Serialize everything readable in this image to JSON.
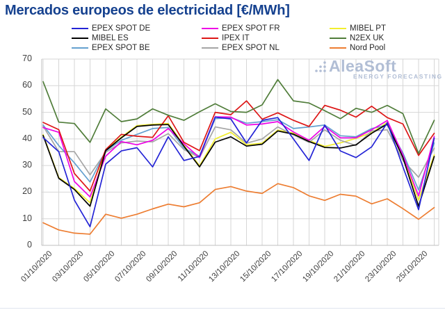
{
  "title": "Mercados europeos de electricidad [€/MWh]",
  "watermark": {
    "brand": "AleaSoft",
    "tagline": "ENERGY FORECASTING"
  },
  "chart_data": {
    "type": "line",
    "title": "Mercados europeos de electricidad [€/MWh]",
    "xlabel": "",
    "ylabel": "",
    "ylim": [
      0,
      70
    ],
    "y_ticks": [
      0,
      10,
      20,
      30,
      40,
      50,
      60,
      70
    ],
    "grid": true,
    "legend_position": "top",
    "x": [
      "01/10/2020",
      "02/10/2020",
      "03/10/2020",
      "04/10/2020",
      "05/10/2020",
      "06/10/2020",
      "07/10/2020",
      "08/10/2020",
      "09/10/2020",
      "10/10/2020",
      "11/10/2020",
      "12/10/2020",
      "13/10/2020",
      "14/10/2020",
      "15/10/2020",
      "16/10/2020",
      "17/10/2020",
      "18/10/2020",
      "19/10/2020",
      "20/10/2020",
      "21/10/2020",
      "22/10/2020",
      "23/10/2020",
      "24/10/2020",
      "25/10/2020",
      "26/10/2020"
    ],
    "x_tick_indices": [
      0,
      2,
      4,
      6,
      8,
      10,
      12,
      14,
      16,
      18,
      20,
      22,
      24
    ],
    "series": [
      {
        "name": "EPEX SPOT DE",
        "color": "#2424d6",
        "z": 7,
        "values": [
          40.5,
          35.2,
          17.0,
          7.0,
          30.5,
          35.5,
          36.7,
          29.5,
          40.8,
          31.9,
          33.4,
          48.2,
          47.5,
          38.5,
          47.0,
          48.0,
          40.0,
          31.9,
          45.2,
          35.5,
          33.0,
          37.0,
          46.1,
          29.5,
          13.4,
          40.3
        ]
      },
      {
        "name": "EPEX SPOT FR",
        "color": "#ee00e6",
        "z": 4,
        "values": [
          44.3,
          42.5,
          24.0,
          18.2,
          33.5,
          39.0,
          37.8,
          39.5,
          43.9,
          38.2,
          33.0,
          48.3,
          48.2,
          45.2,
          45.6,
          46.5,
          42.6,
          39.5,
          44.7,
          40.4,
          40.4,
          43.4,
          46.9,
          33.9,
          18.6,
          40.9
        ]
      },
      {
        "name": "MIBEL PT",
        "color": "#f2ee2e",
        "z": 1,
        "values": [
          41.6,
          25.5,
          21.4,
          16.0,
          35.9,
          40.7,
          45.0,
          45.5,
          45.8,
          37.7,
          29.9,
          40.0,
          42.5,
          37.8,
          38.4,
          43.3,
          42.2,
          39.4,
          37.2,
          38.5,
          40.2,
          42.4,
          46.2,
          33.4,
          17.0,
          34.0
        ]
      },
      {
        "name": "MIBEL ES",
        "color": "#000000",
        "z": 6,
        "values": [
          41.3,
          25.2,
          21.0,
          14.7,
          35.6,
          40.4,
          44.7,
          45.2,
          45.4,
          37.3,
          29.5,
          38.8,
          40.8,
          37.3,
          38.0,
          43.0,
          41.8,
          39.0,
          36.8,
          36.6,
          37.8,
          42.1,
          45.6,
          33.0,
          14.7,
          33.4
        ]
      },
      {
        "name": "IPEX IT",
        "color": "#dd1515",
        "z": 5,
        "values": [
          46.2,
          43.5,
          27.0,
          20.4,
          36.0,
          41.7,
          41.0,
          40.6,
          48.7,
          38.7,
          35.6,
          50.0,
          49.1,
          54.3,
          47.4,
          49.8,
          47.0,
          44.7,
          52.6,
          50.8,
          48.2,
          52.3,
          48.0,
          45.6,
          33.8,
          42.1
        ]
      },
      {
        "name": "N2EX UK",
        "color": "#507d3a",
        "z": 8,
        "values": [
          61.5,
          46.3,
          45.8,
          38.7,
          51.3,
          46.5,
          47.5,
          51.3,
          48.9,
          47.0,
          50.2,
          53.2,
          50.3,
          50.0,
          52.8,
          62.3,
          54.3,
          53.5,
          50.6,
          47.6,
          51.5,
          50.0,
          52.6,
          49.5,
          34.5,
          47.0
        ]
      },
      {
        "name": "EPEX SPOT BE",
        "color": "#64a0cf",
        "z": 3,
        "values": [
          45.2,
          37.5,
          31.0,
          23.8,
          35.5,
          39.5,
          41.7,
          43.9,
          44.3,
          36.5,
          33.5,
          47.6,
          48.0,
          45.9,
          46.5,
          47.2,
          43.9,
          44.5,
          45.2,
          41.2,
          40.8,
          43.9,
          45.2,
          34.7,
          20.8,
          38.5
        ]
      },
      {
        "name": "EPEX SPOT NL",
        "color": "#a5a5a5",
        "z": 2,
        "values": [
          44.8,
          35.2,
          35.2,
          26.5,
          35.0,
          38.5,
          39.2,
          38.9,
          42.0,
          36.0,
          33.0,
          44.5,
          43.4,
          38.4,
          40.0,
          44.5,
          41.5,
          38.7,
          43.4,
          39.5,
          37.5,
          43.0,
          43.4,
          31.9,
          25.6,
          36.5
        ]
      },
      {
        "name": "Nord Pool",
        "color": "#ed7d31",
        "z": 9,
        "values": [
          8.5,
          5.8,
          4.6,
          4.2,
          11.7,
          10.2,
          11.7,
          13.7,
          15.5,
          14.5,
          16.0,
          21.0,
          22.1,
          20.4,
          19.5,
          23.2,
          21.7,
          18.6,
          16.9,
          19.2,
          18.5,
          15.6,
          17.5,
          13.8,
          9.8,
          14.2
        ]
      }
    ]
  }
}
